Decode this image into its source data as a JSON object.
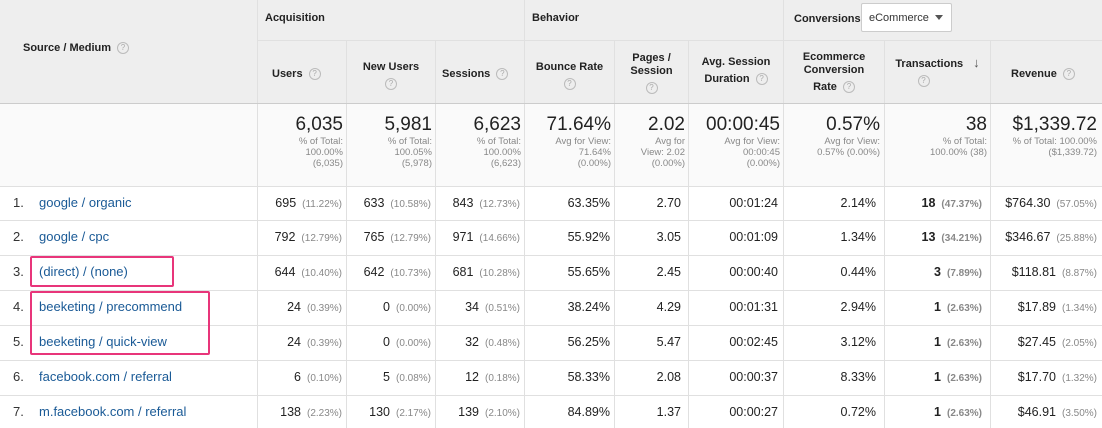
{
  "header": {
    "source_medium": "Source / Medium",
    "acquisition": "Acquisition",
    "behavior": "Behavior",
    "conversions": "Conversions",
    "goal_select": "eCommerce",
    "users": "Users",
    "new_users": "New Users",
    "sessions": "Sessions",
    "bounce_rate": "Bounce Rate",
    "pages_session_1": "Pages /",
    "pages_session_2": "Session",
    "avg_dur_1": "Avg. Session",
    "avg_dur_2": "Duration",
    "ecr_1": "Ecommerce",
    "ecr_2": "Conversion",
    "ecr_3": "Rate",
    "transactions": "Transactions",
    "revenue": "Revenue"
  },
  "totals": {
    "users": {
      "big": "6,035",
      "l1": "% of Total:",
      "l2": "100.00%",
      "l3": "(6,035)"
    },
    "new_users": {
      "big": "5,981",
      "l1": "% of Total:",
      "l2": "100.05%",
      "l3": "(5,978)"
    },
    "sessions": {
      "big": "6,623",
      "l1": "% of Total:",
      "l2": "100.00%",
      "l3": "(6,623)"
    },
    "bounce_rate": {
      "big": "71.64%",
      "l1": "Avg for View:",
      "l2": "71.64%",
      "l3": "(0.00%)"
    },
    "pages_session": {
      "big": "2.02",
      "l1": "Avg for",
      "l2": "View: 2.02",
      "l3": "(0.00%)"
    },
    "avg_dur": {
      "big": "00:00:45",
      "l1": "Avg for View:",
      "l2": "00:00:45",
      "l3": "(0.00%)"
    },
    "ecr": {
      "big": "0.57%",
      "l1": "Avg for View:",
      "l2": "0.57% (0.00%)",
      "l3": ""
    },
    "transactions": {
      "big": "38",
      "l1": "% of Total:",
      "l2": "100.00% (38)",
      "l3": ""
    },
    "revenue": {
      "big": "$1,339.72",
      "l1": "% of Total: 100.00%",
      "l2": "($1,339.72)",
      "l3": ""
    }
  },
  "rows": [
    {
      "idx": "1.",
      "source": "google / organic",
      "users": "695",
      "users_pct": "(11.22%)",
      "new_users": "633",
      "new_users_pct": "(10.58%)",
      "sessions": "843",
      "sessions_pct": "(12.73%)",
      "bounce": "63.35%",
      "pages": "2.70",
      "dur": "00:01:24",
      "ecr": "2.14%",
      "trans": "18",
      "trans_pct": "(47.37%)",
      "rev": "$764.30",
      "rev_pct": "(57.05%)"
    },
    {
      "idx": "2.",
      "source": "google / cpc",
      "users": "792",
      "users_pct": "(12.79%)",
      "new_users": "765",
      "new_users_pct": "(12.79%)",
      "sessions": "971",
      "sessions_pct": "(14.66%)",
      "bounce": "55.92%",
      "pages": "3.05",
      "dur": "00:01:09",
      "ecr": "1.34%",
      "trans": "13",
      "trans_pct": "(34.21%)",
      "rev": "$346.67",
      "rev_pct": "(25.88%)"
    },
    {
      "idx": "3.",
      "source": "(direct) / (none)",
      "users": "644",
      "users_pct": "(10.40%)",
      "new_users": "642",
      "new_users_pct": "(10.73%)",
      "sessions": "681",
      "sessions_pct": "(10.28%)",
      "bounce": "55.65%",
      "pages": "2.45",
      "dur": "00:00:40",
      "ecr": "0.44%",
      "trans": "3",
      "trans_pct": "(7.89%)",
      "rev": "$118.81",
      "rev_pct": "(8.87%)"
    },
    {
      "idx": "4.",
      "source": "beeketing / precommend",
      "users": "24",
      "users_pct": "(0.39%)",
      "new_users": "0",
      "new_users_pct": "(0.00%)",
      "sessions": "34",
      "sessions_pct": "(0.51%)",
      "bounce": "38.24%",
      "pages": "4.29",
      "dur": "00:01:31",
      "ecr": "2.94%",
      "trans": "1",
      "trans_pct": "(2.63%)",
      "rev": "$17.89",
      "rev_pct": "(1.34%)"
    },
    {
      "idx": "5.",
      "source": "beeketing / quick-view",
      "users": "24",
      "users_pct": "(0.39%)",
      "new_users": "0",
      "new_users_pct": "(0.00%)",
      "sessions": "32",
      "sessions_pct": "(0.48%)",
      "bounce": "56.25%",
      "pages": "5.47",
      "dur": "00:02:45",
      "ecr": "3.12%",
      "trans": "1",
      "trans_pct": "(2.63%)",
      "rev": "$27.45",
      "rev_pct": "(2.05%)"
    },
    {
      "idx": "6.",
      "source": "facebook.com / referral",
      "users": "6",
      "users_pct": "(0.10%)",
      "new_users": "5",
      "new_users_pct": "(0.08%)",
      "sessions": "12",
      "sessions_pct": "(0.18%)",
      "bounce": "58.33%",
      "pages": "2.08",
      "dur": "00:00:37",
      "ecr": "8.33%",
      "trans": "1",
      "trans_pct": "(2.63%)",
      "rev": "$17.70",
      "rev_pct": "(1.32%)"
    },
    {
      "idx": "7.",
      "source": "m.facebook.com / referral",
      "users": "138",
      "users_pct": "(2.23%)",
      "new_users": "130",
      "new_users_pct": "(2.17%)",
      "sessions": "139",
      "sessions_pct": "(2.10%)",
      "bounce": "84.89%",
      "pages": "1.37",
      "dur": "00:00:27",
      "ecr": "0.72%",
      "trans": "1",
      "trans_pct": "(2.63%)",
      "rev": "$46.91",
      "rev_pct": "(3.50%)"
    }
  ],
  "colors": {
    "link": "#1a5a96",
    "highlight": "#e8357a",
    "header_bg": "#eeeeee"
  }
}
